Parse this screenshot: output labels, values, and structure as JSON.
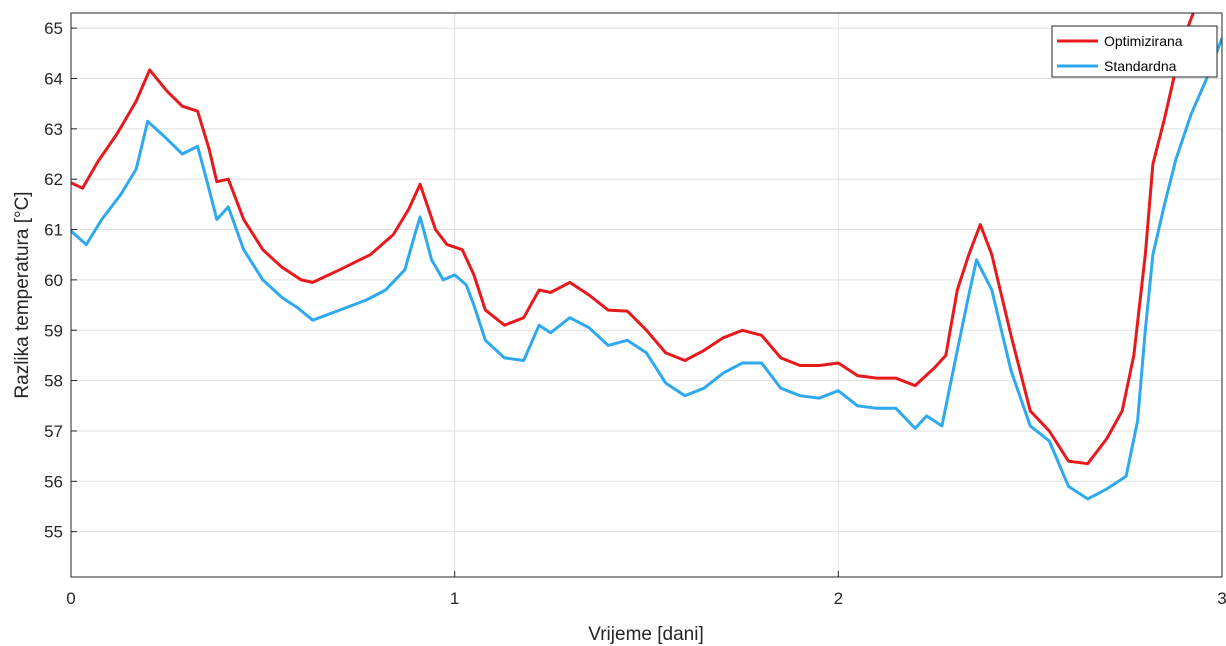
{
  "chart_data": {
    "type": "line",
    "title": "",
    "xlabel": "Vrijeme [dani]",
    "ylabel": "Razlika temperatura [°C]",
    "xlim": [
      0,
      3
    ],
    "ylim": [
      54.1,
      65.3
    ],
    "xticks": [
      0,
      1,
      2,
      3
    ],
    "yticks": [
      55,
      56,
      57,
      58,
      59,
      60,
      61,
      62,
      63,
      64,
      65
    ],
    "grid": true,
    "legend_position": "top-right",
    "series": [
      {
        "name": "Optimizirana",
        "color": "#e8191c",
        "points": [
          [
            0.0,
            61.93
          ],
          [
            0.03,
            61.82
          ],
          [
            0.07,
            62.35
          ],
          [
            0.12,
            62.9
          ],
          [
            0.17,
            63.55
          ],
          [
            0.205,
            64.17
          ],
          [
            0.25,
            63.75
          ],
          [
            0.29,
            63.45
          ],
          [
            0.33,
            63.35
          ],
          [
            0.36,
            62.6
          ],
          [
            0.38,
            61.95
          ],
          [
            0.41,
            62.0
          ],
          [
            0.45,
            61.2
          ],
          [
            0.5,
            60.6
          ],
          [
            0.55,
            60.25
          ],
          [
            0.6,
            60.0
          ],
          [
            0.63,
            59.95
          ],
          [
            0.7,
            60.2
          ],
          [
            0.78,
            60.5
          ],
          [
            0.84,
            60.9
          ],
          [
            0.88,
            61.4
          ],
          [
            0.91,
            61.9
          ],
          [
            0.95,
            61.0
          ],
          [
            0.98,
            60.7
          ],
          [
            1.02,
            60.6
          ],
          [
            1.05,
            60.1
          ],
          [
            1.08,
            59.4
          ],
          [
            1.13,
            59.1
          ],
          [
            1.18,
            59.25
          ],
          [
            1.22,
            59.8
          ],
          [
            1.25,
            59.75
          ],
          [
            1.3,
            59.95
          ],
          [
            1.35,
            59.7
          ],
          [
            1.4,
            59.4
          ],
          [
            1.45,
            59.38
          ],
          [
            1.5,
            59.0
          ],
          [
            1.55,
            58.55
          ],
          [
            1.6,
            58.4
          ],
          [
            1.65,
            58.6
          ],
          [
            1.7,
            58.85
          ],
          [
            1.75,
            59.0
          ],
          [
            1.8,
            58.9
          ],
          [
            1.85,
            58.45
          ],
          [
            1.9,
            58.3
          ],
          [
            1.95,
            58.3
          ],
          [
            2.0,
            58.35
          ],
          [
            2.05,
            58.1
          ],
          [
            2.1,
            58.05
          ],
          [
            2.15,
            58.05
          ],
          [
            2.2,
            57.9
          ],
          [
            2.25,
            58.25
          ],
          [
            2.28,
            58.5
          ],
          [
            2.31,
            59.8
          ],
          [
            2.34,
            60.5
          ],
          [
            2.37,
            61.1
          ],
          [
            2.4,
            60.5
          ],
          [
            2.45,
            58.9
          ],
          [
            2.5,
            57.4
          ],
          [
            2.55,
            57.0
          ],
          [
            2.6,
            56.4
          ],
          [
            2.65,
            56.35
          ],
          [
            2.7,
            56.85
          ],
          [
            2.74,
            57.4
          ],
          [
            2.77,
            58.5
          ],
          [
            2.8,
            60.5
          ],
          [
            2.82,
            62.3
          ],
          [
            2.85,
            63.2
          ],
          [
            2.88,
            64.2
          ],
          [
            2.91,
            65.0
          ],
          [
            2.94,
            65.6
          ],
          [
            2.96,
            66.0
          ]
        ]
      },
      {
        "name": "Standardna",
        "color": "#2ea8ef",
        "points": [
          [
            0.0,
            60.97
          ],
          [
            0.04,
            60.7
          ],
          [
            0.08,
            61.2
          ],
          [
            0.13,
            61.7
          ],
          [
            0.17,
            62.2
          ],
          [
            0.2,
            63.15
          ],
          [
            0.25,
            62.8
          ],
          [
            0.29,
            62.5
          ],
          [
            0.33,
            62.65
          ],
          [
            0.36,
            61.8
          ],
          [
            0.38,
            61.2
          ],
          [
            0.41,
            61.45
          ],
          [
            0.45,
            60.6
          ],
          [
            0.5,
            60.0
          ],
          [
            0.55,
            59.65
          ],
          [
            0.59,
            59.45
          ],
          [
            0.63,
            59.2
          ],
          [
            0.7,
            59.4
          ],
          [
            0.77,
            59.6
          ],
          [
            0.82,
            59.8
          ],
          [
            0.87,
            60.2
          ],
          [
            0.9,
            61.0
          ],
          [
            0.91,
            61.25
          ],
          [
            0.94,
            60.4
          ],
          [
            0.97,
            60.0
          ],
          [
            1.0,
            60.1
          ],
          [
            1.03,
            59.9
          ],
          [
            1.05,
            59.5
          ],
          [
            1.08,
            58.8
          ],
          [
            1.13,
            58.45
          ],
          [
            1.18,
            58.4
          ],
          [
            1.22,
            59.1
          ],
          [
            1.25,
            58.95
          ],
          [
            1.3,
            59.25
          ],
          [
            1.35,
            59.05
          ],
          [
            1.4,
            58.7
          ],
          [
            1.45,
            58.8
          ],
          [
            1.5,
            58.55
          ],
          [
            1.55,
            57.95
          ],
          [
            1.6,
            57.7
          ],
          [
            1.65,
            57.85
          ],
          [
            1.7,
            58.15
          ],
          [
            1.75,
            58.35
          ],
          [
            1.8,
            58.35
          ],
          [
            1.85,
            57.85
          ],
          [
            1.9,
            57.7
          ],
          [
            1.95,
            57.65
          ],
          [
            2.0,
            57.8
          ],
          [
            2.05,
            57.5
          ],
          [
            2.1,
            57.45
          ],
          [
            2.15,
            57.45
          ],
          [
            2.2,
            57.05
          ],
          [
            2.23,
            57.3
          ],
          [
            2.27,
            57.1
          ],
          [
            2.31,
            58.6
          ],
          [
            2.34,
            59.7
          ],
          [
            2.36,
            60.4
          ],
          [
            2.4,
            59.8
          ],
          [
            2.45,
            58.2
          ],
          [
            2.5,
            57.1
          ],
          [
            2.55,
            56.8
          ],
          [
            2.6,
            55.9
          ],
          [
            2.65,
            55.65
          ],
          [
            2.7,
            55.85
          ],
          [
            2.75,
            56.1
          ],
          [
            2.78,
            57.2
          ],
          [
            2.8,
            59.0
          ],
          [
            2.82,
            60.5
          ],
          [
            2.85,
            61.5
          ],
          [
            2.88,
            62.4
          ],
          [
            2.92,
            63.3
          ],
          [
            2.96,
            64.0
          ],
          [
            3.0,
            64.8
          ]
        ]
      }
    ]
  }
}
